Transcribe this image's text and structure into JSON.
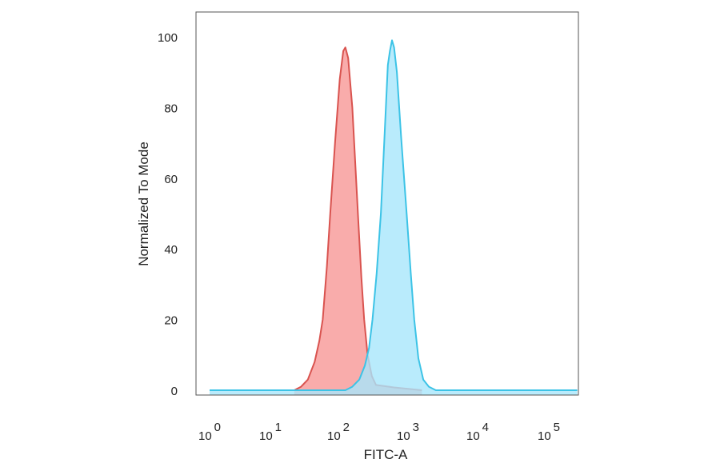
{
  "chart_data": {
    "type": "area",
    "title": "",
    "xlabel": "FITC-A",
    "ylabel": "Normalized To Mode",
    "x_scale": "log",
    "xlim_log10": [
      0,
      5
    ],
    "ylim": [
      0,
      100
    ],
    "grid": false,
    "x_ticks": [
      {
        "base": "10",
        "exp": "0",
        "log10": 0
      },
      {
        "base": "10",
        "exp": "1",
        "log10": 1
      },
      {
        "base": "10",
        "exp": "2",
        "log10": 2
      },
      {
        "base": "10",
        "exp": "3",
        "log10": 3
      },
      {
        "base": "10",
        "exp": "4",
        "log10": 4
      },
      {
        "base": "10",
        "exp": "5",
        "log10": 5
      }
    ],
    "y_ticks": [
      "0",
      "20",
      "40",
      "60",
      "80",
      "100"
    ],
    "series": [
      {
        "color": "#d9534f",
        "fill": "#f9a8a6",
        "points_log10x_y": [
          [
            1.35,
            0
          ],
          [
            1.45,
            1
          ],
          [
            1.55,
            3
          ],
          [
            1.65,
            8
          ],
          [
            1.72,
            14
          ],
          [
            1.77,
            20
          ],
          [
            1.83,
            35
          ],
          [
            1.88,
            50
          ],
          [
            1.95,
            70
          ],
          [
            2.02,
            88
          ],
          [
            2.07,
            96
          ],
          [
            2.1,
            97
          ],
          [
            2.14,
            94
          ],
          [
            2.2,
            80
          ],
          [
            2.24,
            65
          ],
          [
            2.28,
            50
          ],
          [
            2.33,
            32
          ],
          [
            2.37,
            20
          ],
          [
            2.42,
            10
          ],
          [
            2.48,
            4
          ],
          [
            2.54,
            1.5
          ],
          [
            2.8,
            0.8
          ],
          [
            3.2,
            0
          ]
        ]
      },
      {
        "color": "#3cc3e6",
        "fill": "#a8e6fb",
        "points_log10x_y": [
          [
            0,
            0
          ],
          [
            2.1,
            0
          ],
          [
            2.2,
            1
          ],
          [
            2.3,
            3
          ],
          [
            2.38,
            7
          ],
          [
            2.44,
            12
          ],
          [
            2.49,
            20
          ],
          [
            2.55,
            33
          ],
          [
            2.61,
            50
          ],
          [
            2.67,
            75
          ],
          [
            2.71,
            92
          ],
          [
            2.74,
            96
          ],
          [
            2.77,
            99
          ],
          [
            2.8,
            97
          ],
          [
            2.84,
            90
          ],
          [
            2.9,
            72
          ],
          [
            2.98,
            50
          ],
          [
            3.04,
            33
          ],
          [
            3.09,
            20
          ],
          [
            3.15,
            9
          ],
          [
            3.22,
            3
          ],
          [
            3.3,
            1
          ],
          [
            3.4,
            0
          ],
          [
            5.4,
            0
          ]
        ]
      }
    ]
  }
}
